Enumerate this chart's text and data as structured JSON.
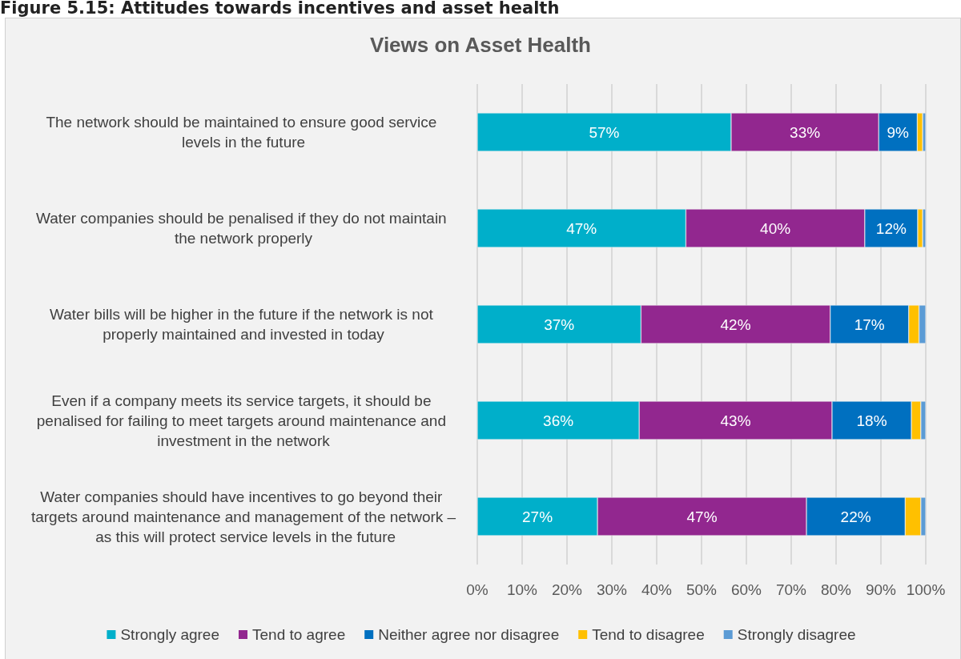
{
  "chart_data": {
    "type": "bar",
    "orientation": "horizontal",
    "stacked": true,
    "title": "Views on Asset Health",
    "annotations": [
      "Figure 5.15: Attitudes towards incentives and asset health"
    ],
    "categories": [
      "The network should be maintained to ensure good service levels in the future",
      "Water companies should be penalised if they do not maintain the network properly",
      "Water bills will be higher in the future if the network is not properly maintained and invested in today",
      "Even if a company meets its service targets, it should be penalised for failing to meet targets around maintenance and investment in the network",
      "Water companies should have incentives to go beyond their targets around maintenance and management of the network – as this will protect service levels in the future"
    ],
    "series": [
      {
        "name": "Strongly agree",
        "color": "#00afca",
        "values": [
          56.6,
          46.5,
          36.5,
          36.1,
          26.8
        ],
        "value_labels": [
          "57%",
          "47%",
          "37%",
          "36%",
          "27%"
        ]
      },
      {
        "name": "Tend to agree",
        "color": "#92278f",
        "values": [
          32.9,
          39.9,
          42.2,
          43,
          46.6
        ],
        "value_labels": [
          "33%",
          "40%",
          "42%",
          "43%",
          "47%"
        ]
      },
      {
        "name": "Neither agree nor disagree",
        "color": "#0070c0",
        "values": [
          8.6,
          11.8,
          17.5,
          17.7,
          22
        ],
        "value_labels": [
          "9%",
          "12%",
          "17%",
          "18%",
          "22%"
        ]
      },
      {
        "name": "Tend to disagree",
        "color": "#ffc000",
        "values": [
          1.2,
          1.1,
          2.3,
          2.1,
          3.5
        ]
      },
      {
        "name": "Strongly disagree",
        "color": "#5b9bd5",
        "values": [
          0.7,
          0.7,
          1.5,
          1.1,
          1.1
        ]
      }
    ],
    "xlim": [
      0,
      100
    ],
    "xticks": [
      {
        "value": 0,
        "label": "0%"
      },
      {
        "value": 10,
        "label": "10%"
      },
      {
        "value": 20,
        "label": "20%"
      },
      {
        "value": 30,
        "label": "30%"
      },
      {
        "value": 40,
        "label": "40%"
      },
      {
        "value": 50,
        "label": "50%"
      },
      {
        "value": 60,
        "label": "60%"
      },
      {
        "value": 70,
        "label": "70%"
      },
      {
        "value": 80,
        "label": "80%"
      },
      {
        "value": 90,
        "label": "90%"
      },
      {
        "value": 100,
        "label": "100%"
      }
    ],
    "grid": "x",
    "legend": "bottom"
  }
}
